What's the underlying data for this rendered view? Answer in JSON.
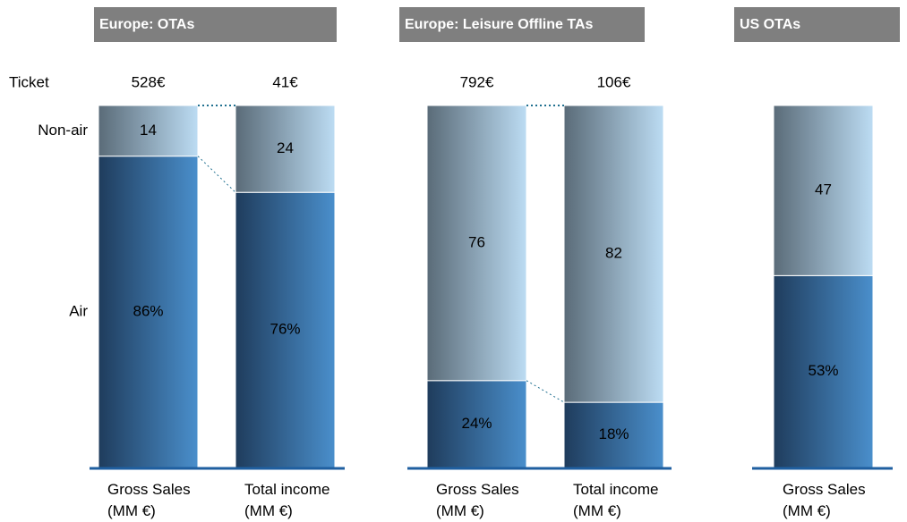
{
  "chart_data": [
    {
      "type": "bar",
      "stacked": true,
      "title": "Europe: OTAs",
      "ticket_label": "Ticket",
      "tickets": [
        "528€",
        "41€"
      ],
      "categories": [
        "Gross Sales (MM €)",
        "Total income (MM €)"
      ],
      "ylim": [
        0,
        100
      ],
      "series": [
        {
          "name": "Air",
          "color": "#4a8fcc",
          "values": [
            86,
            76
          ],
          "value_labels": [
            "86%",
            "76%"
          ]
        },
        {
          "name": "Non-air",
          "color": "#bcdcf3",
          "values": [
            14,
            24
          ]
        }
      ]
    },
    {
      "type": "bar",
      "stacked": true,
      "title": "Europe: Leisure Offline TAs",
      "tickets": [
        "792€",
        "106€"
      ],
      "categories": [
        "Gross Sales (MM €)",
        "Total income (MM €)"
      ],
      "ylim": [
        0,
        100
      ],
      "series": [
        {
          "color": "#4a8fcc",
          "values": [
            24,
            18
          ],
          "value_labels": [
            "24%",
            "18%"
          ]
        },
        {
          "color": "#bcdcf3",
          "values": [
            76,
            82
          ]
        }
      ]
    },
    {
      "type": "bar",
      "stacked": true,
      "title": "US OTAs",
      "categories": [
        "Gross Sales (MM €)"
      ],
      "ylim": [
        0,
        100
      ],
      "series": [
        {
          "color": "#4a8fcc",
          "values": [
            53
          ],
          "value_labels": [
            "53%"
          ]
        },
        {
          "color": "#bcdcf3",
          "values": [
            47
          ]
        }
      ]
    }
  ]
}
